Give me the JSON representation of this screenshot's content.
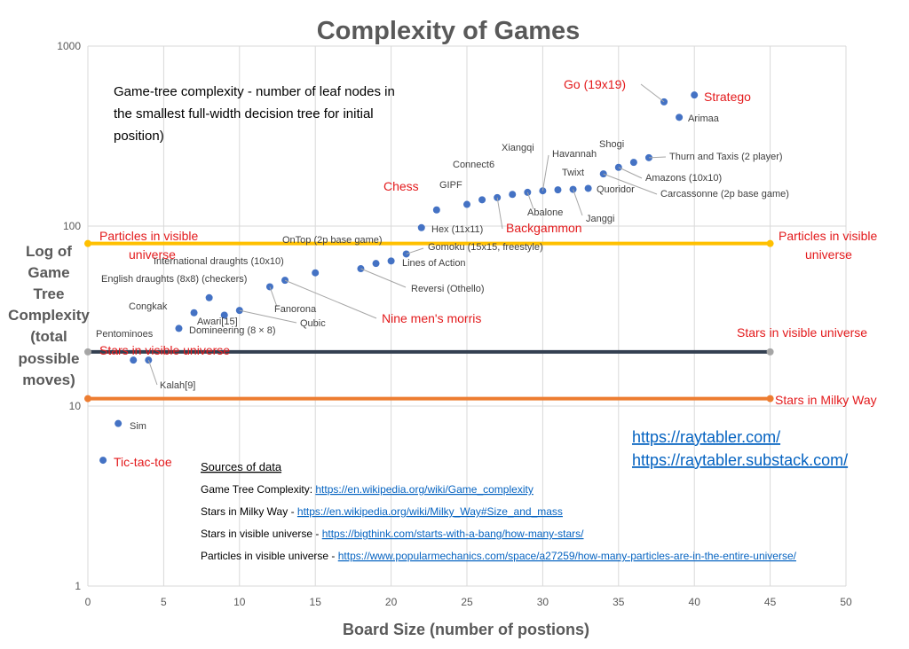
{
  "chart_data": {
    "type": "scatter",
    "title": "Complexity of Games",
    "xlabel": "Board Size (number of postions)",
    "ylabel_lines": [
      "Log of",
      "Game",
      "Tree",
      "Complexity",
      "(total",
      "possible",
      "moves)"
    ],
    "x_ticks": [
      0,
      5,
      10,
      15,
      20,
      25,
      30,
      35,
      40,
      45,
      50
    ],
    "y_ticks": [
      1,
      10,
      100,
      1000
    ],
    "xlim": [
      0,
      50
    ],
    "ylim": [
      1,
      1000
    ],
    "y_scale": "log",
    "grid": true,
    "note_lines": [
      "Game-tree complexity - number of leaf nodes in",
      "the smallest full-width decision tree for initial",
      "position)"
    ],
    "points": [
      {
        "name": "Tic-tac-toe",
        "x": 1,
        "y": 5,
        "highlight": true
      },
      {
        "name": "Sim",
        "x": 2,
        "y": 8,
        "highlight": false
      },
      {
        "name": "Pentominoes",
        "x": 3,
        "y": 18,
        "highlight": false
      },
      {
        "name": "Kalah[9]",
        "x": 4,
        "y": 18,
        "highlight": false
      },
      {
        "name": "Domineering (8 × 8)",
        "x": 6,
        "y": 27,
        "highlight": false
      },
      {
        "name": "Congkak",
        "x": 7,
        "y": 33,
        "highlight": false
      },
      {
        "name": "English draughts (8x8) (checkers)",
        "x": 8,
        "y": 40,
        "highlight": false
      },
      {
        "name": "Awari[15]",
        "x": 9,
        "y": 32,
        "highlight": false
      },
      {
        "name": "Qubic",
        "x": 10,
        "y": 34,
        "highlight": false
      },
      {
        "name": "Fanorona",
        "x": 12,
        "y": 46,
        "highlight": false
      },
      {
        "name": "Nine men's morris",
        "x": 13,
        "y": 50,
        "highlight": true
      },
      {
        "name": "International draughts (10x10)",
        "x": 15,
        "y": 55,
        "highlight": false
      },
      {
        "name": "Reversi (Othello)",
        "x": 18,
        "y": 58,
        "highlight": false
      },
      {
        "name": "OnTop (2p base game)",
        "x": 19,
        "y": 62,
        "highlight": false
      },
      {
        "name": "Lines of Action",
        "x": 20,
        "y": 64,
        "highlight": false
      },
      {
        "name": "Gomoku (15x15, freestyle)",
        "x": 21,
        "y": 70,
        "highlight": false
      },
      {
        "name": "Hex (11x11)",
        "x": 22,
        "y": 98,
        "highlight": false
      },
      {
        "name": "Chess",
        "x": 23,
        "y": 123,
        "highlight": true
      },
      {
        "name": "GIPF",
        "x": 25,
        "y": 132,
        "highlight": false
      },
      {
        "name": "Connect6",
        "x": 26,
        "y": 140,
        "highlight": false
      },
      {
        "name": "Backgammon",
        "x": 27,
        "y": 144,
        "highlight": true
      },
      {
        "name": "Xiangqi",
        "x": 28,
        "y": 150,
        "highlight": false
      },
      {
        "name": "Abalone",
        "x": 29,
        "y": 154,
        "highlight": false
      },
      {
        "name": "Havannah",
        "x": 30,
        "y": 157,
        "highlight": false
      },
      {
        "name": "Twixt",
        "x": 31,
        "y": 159,
        "highlight": false
      },
      {
        "name": "Janggi",
        "x": 32,
        "y": 160,
        "highlight": false
      },
      {
        "name": "Quoridor",
        "x": 33,
        "y": 162,
        "highlight": false
      },
      {
        "name": "Carcassonne (2p base game)",
        "x": 34,
        "y": 195,
        "highlight": false
      },
      {
        "name": "Amazons (10x10)",
        "x": 35,
        "y": 212,
        "highlight": false
      },
      {
        "name": "Shogi",
        "x": 36,
        "y": 226,
        "highlight": false
      },
      {
        "name": "Thurn and Taxis (2 player)",
        "x": 37,
        "y": 240,
        "highlight": false
      },
      {
        "name": "Go (19x19)",
        "x": 38,
        "y": 490,
        "highlight": true
      },
      {
        "name": "Arimaa",
        "x": 39,
        "y": 402,
        "highlight": false
      },
      {
        "name": "Stratego",
        "x": 40,
        "y": 535,
        "highlight": true
      }
    ],
    "reference_lines": [
      {
        "name": "Particles in visible universe",
        "left_label": "Particles in visible universe",
        "right_label": "Particles in visible universe",
        "y": 80,
        "x_start": 0,
        "x_end": 45,
        "color": "#ffc000"
      },
      {
        "name": "Stars in visible universe",
        "left_label": "Stars in visible universe",
        "right_label": "Stars in visible universe",
        "y": 20,
        "x_start": 0,
        "x_end": 45,
        "color": "#333f50"
      },
      {
        "name": "Stars in Milky Way",
        "left_label": "",
        "right_label": "Stars in Milky Way",
        "y": 11,
        "x_start": 0,
        "x_end": 45,
        "color": "#ed7d31"
      }
    ],
    "colors": {
      "point": "#4472c4",
      "highlight_label": "#e31a1c",
      "label": "#404040",
      "gridline": "#d9d9d9",
      "endpoint": "#a6a6a6"
    }
  },
  "links": {
    "site1": "https://raytabler.com/",
    "site2": "https://raytabler.substack.com/"
  },
  "sources": {
    "heading": "Sources of data",
    "rows": [
      {
        "label": "Game Tree Complexity: ",
        "url": "https://en.wikipedia.org/wiki/Game_complexity"
      },
      {
        "label": "Stars in Milky Way - ",
        "url": "https://en.wikipedia.org/wiki/Milky_Way#Size_and_mass"
      },
      {
        "label": "Stars in visible universe - ",
        "url": "https://bigthink.com/starts-with-a-bang/how-many-stars/"
      },
      {
        "label": "Particles in visible universe - ",
        "url": "https://www.popularmechanics.com/space/a27259/how-many-particles-are-in-the-entire-universe/"
      }
    ]
  }
}
